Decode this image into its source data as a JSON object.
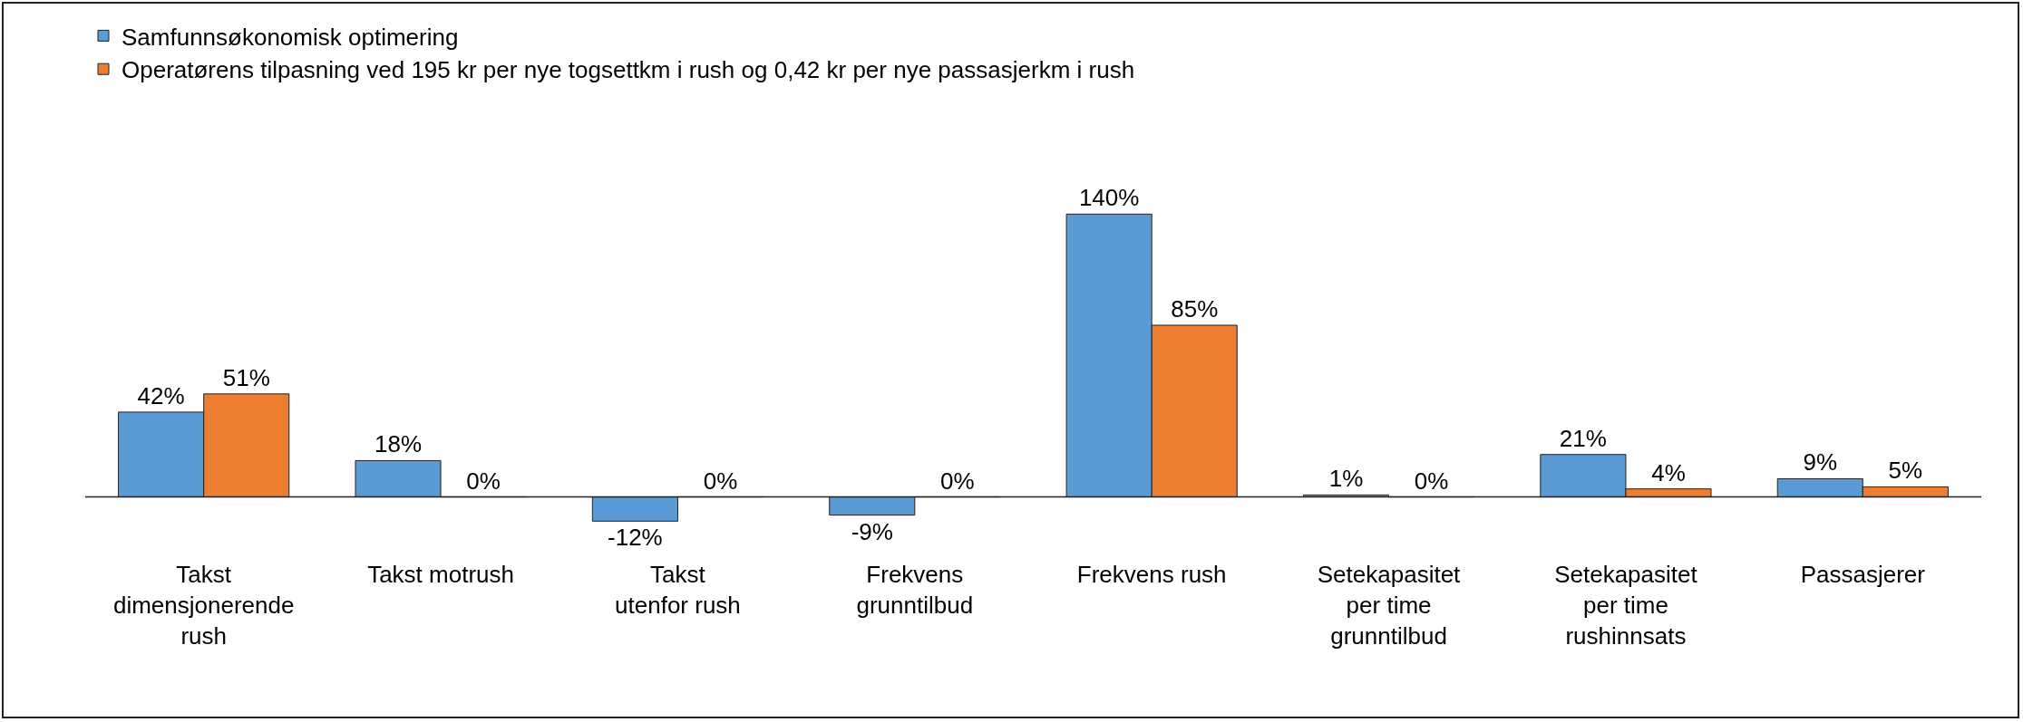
{
  "chart_data": {
    "type": "bar",
    "categories": [
      "Takst\ndimensjonerende\nrush",
      "Takst motrush",
      "Takst\nutenfor rush",
      "Frekvens\ngrunntilbud",
      "Frekvens rush",
      "Setekapasitet\nper time\ngrunntilbud",
      "Setekapasitet\nper time\nrushinnsats",
      "Passasjerer"
    ],
    "series": [
      {
        "name": "Samfunnsøkonomisk optimering",
        "color": "#5b9bd5",
        "values": [
          42,
          18,
          -12,
          -9,
          140,
          1,
          21,
          9
        ],
        "value_labels": [
          "42%",
          "18%",
          "-12%",
          "-9%",
          "140%",
          "1%",
          "21%",
          "9%"
        ]
      },
      {
        "name": "Operatørens tilpasning ved 195 kr per nye togsettkm i rush og 0,42 kr per nye passasjerkm i rush",
        "color": "#ed7d31",
        "values": [
          51,
          0,
          0,
          0,
          85,
          0,
          4,
          5
        ],
        "value_labels": [
          "51%",
          "0%",
          "0%",
          "0%",
          "85%",
          "0%",
          "4%",
          "5%"
        ]
      }
    ],
    "legend": "top left"
  }
}
